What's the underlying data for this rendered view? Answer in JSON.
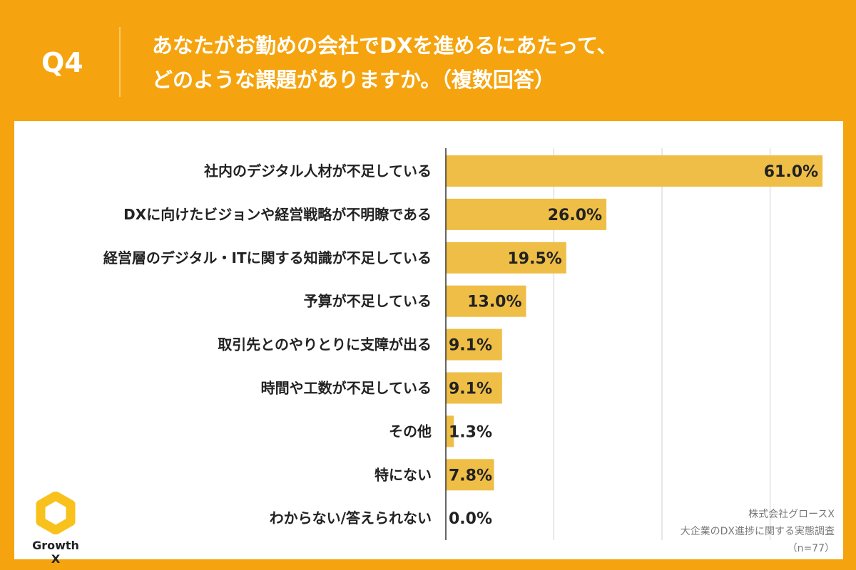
{
  "header": {
    "q": "Q4",
    "title_line1": "あなたがお勤めの会社でDXを進めるにあたって、",
    "title_line2": "どのような課題がありますか。（複数回答）"
  },
  "chart_data": {
    "type": "bar",
    "orientation": "horizontal",
    "categories": [
      "社内のデジタル人材が不足している",
      "DXに向けたビジョンや経営戦略が不明瞭である",
      "経営層のデジタル・ITに関する知識が不足している",
      "予算が不足している",
      "取引先とのやりとりに支障が出る",
      "時間や工数が不足している",
      "その他",
      "特にない",
      "わからない/答えられない"
    ],
    "values": [
      61.0,
      26.0,
      19.5,
      13.0,
      9.1,
      9.1,
      1.3,
      7.8,
      0.0
    ],
    "labels": [
      "61.0%",
      "26.0%",
      "19.5%",
      "13.0%",
      "9.1%",
      "9.1%",
      "1.3%",
      "7.8%",
      "0.0%"
    ],
    "xlim": [
      0,
      70
    ],
    "grid": true,
    "bar_color": "#EEBE47"
  },
  "source": {
    "company": "株式会社グロースX",
    "survey": "大企業のDX進捗に関する実態調査",
    "n": "（n=77）"
  },
  "logo": {
    "text": "Growth X",
    "color": "#F8C11B"
  }
}
